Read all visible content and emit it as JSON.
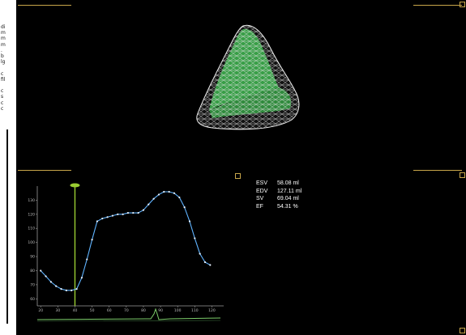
{
  "left_strip": {
    "glyphs": "di\nm\nm\nm\n.\nb\nlg\n\nc\nfil\n\nc\ns\nc\nc"
  },
  "metrics": [
    {
      "key": "ESV",
      "value": "58.08 ml"
    },
    {
      "key": "EDV",
      "value": "127.11 ml"
    },
    {
      "key": "SV",
      "value": "69.04 ml"
    },
    {
      "key": "EF",
      "value": "54.31 %"
    }
  ],
  "chart_data": {
    "type": "line",
    "x": [
      20,
      23,
      26,
      29,
      32,
      35,
      38,
      41,
      44,
      47,
      50,
      53,
      56,
      59,
      62,
      65,
      68,
      71,
      74,
      77,
      80,
      83,
      86,
      89,
      92,
      95,
      98,
      101,
      104,
      107,
      110,
      113,
      116,
      119
    ],
    "y": [
      80,
      76,
      72,
      69,
      67,
      66,
      66,
      67,
      75,
      88,
      102,
      115,
      117,
      118,
      119,
      120,
      120,
      121,
      121,
      121,
      123,
      127,
      131,
      134,
      136,
      136,
      135,
      132,
      125,
      115,
      103,
      92,
      86,
      84
    ],
    "xlim": [
      18,
      125
    ],
    "ylim": [
      55,
      140
    ],
    "x_ticks": [
      "20",
      "30",
      "40",
      "50",
      "60",
      "70",
      "80",
      "90",
      "100",
      "110",
      "120"
    ],
    "y_ticks": [
      "60",
      "70",
      "80",
      "90",
      "100",
      "110",
      "120",
      "130"
    ],
    "cursor_x": 40,
    "line_color": "#5fb3ff",
    "cursor_color": "#9acd32"
  },
  "colors": {
    "accent_gold": "#c8a64a",
    "mesh": "#d8d8d8",
    "fill": "#3aa64a"
  }
}
